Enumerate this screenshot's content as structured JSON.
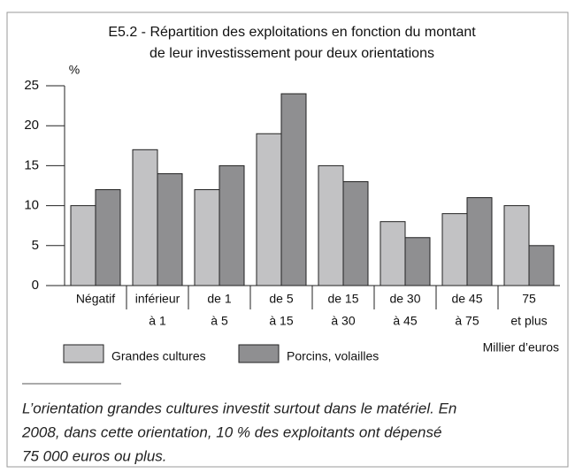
{
  "chart_data": {
    "type": "bar",
    "title": [
      "E5.2 - Répartition des exploitations en fonction du montant",
      "de leur investissement pour deux orientations"
    ],
    "y_label": "%",
    "x_label": "Millier d’euros",
    "categories": [
      [
        "Négatif"
      ],
      [
        "inférieur",
        "à 1"
      ],
      [
        "de 1",
        "à 5"
      ],
      [
        "de 5",
        "à 15"
      ],
      [
        "de 15",
        "à 30"
      ],
      [
        "de 30",
        "à 45"
      ],
      [
        "de 45",
        "à 75"
      ],
      [
        "75",
        "et plus"
      ]
    ],
    "series": [
      {
        "name": "Grandes cultures",
        "color": "#c2c2c4",
        "values": [
          10,
          17,
          12,
          19,
          15,
          8,
          9,
          10
        ]
      },
      {
        "name": "Porcins, volailles",
        "color": "#8f8f91",
        "values": [
          12,
          14,
          15,
          24,
          13,
          6,
          11,
          5
        ]
      }
    ],
    "ylim": [
      0,
      25
    ],
    "yticks": [
      0,
      5,
      10,
      15,
      20,
      25
    ],
    "grid": false
  },
  "note": [
    "L’orientation grandes cultures investit surtout dans le matériel. En",
    "2008, dans cette orientation, 10 % des exploitants ont dépensé",
    "75 000 euros ou plus."
  ]
}
